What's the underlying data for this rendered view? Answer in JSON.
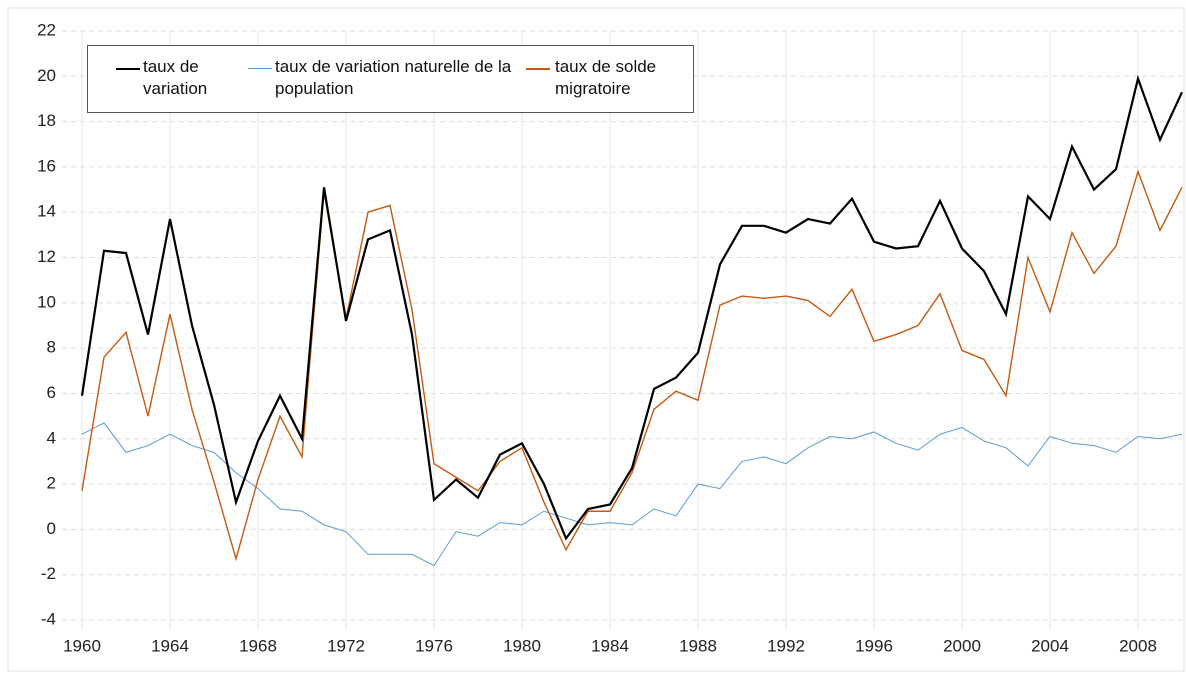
{
  "chart_data": {
    "type": "line",
    "x": [
      1960,
      1961,
      1962,
      1963,
      1964,
      1965,
      1966,
      1967,
      1968,
      1969,
      1970,
      1971,
      1972,
      1973,
      1974,
      1975,
      1976,
      1977,
      1978,
      1979,
      1980,
      1981,
      1982,
      1983,
      1984,
      1985,
      1986,
      1987,
      1988,
      1989,
      1990,
      1991,
      1992,
      1993,
      1994,
      1995,
      1996,
      1997,
      1998,
      1999,
      2000,
      2001,
      2002,
      2003,
      2004,
      2005,
      2006,
      2007,
      2008,
      2009,
      2010
    ],
    "series": [
      {
        "name": "taux de variation",
        "color": "#000000",
        "values": [
          5.9,
          12.3,
          12.2,
          8.6,
          13.7,
          9.0,
          5.5,
          1.2,
          3.9,
          5.9,
          4.0,
          15.1,
          9.2,
          12.8,
          13.2,
          8.6,
          1.3,
          2.2,
          1.4,
          3.3,
          3.8,
          2.0,
          -0.4,
          0.9,
          1.1,
          2.7,
          6.2,
          6.7,
          7.8,
          11.7,
          13.4,
          13.4,
          13.1,
          13.7,
          13.5,
          14.6,
          12.7,
          12.4,
          12.5,
          14.5,
          12.4,
          11.4,
          9.5,
          14.7,
          13.7,
          16.9,
          15.0,
          15.9,
          19.9,
          17.2,
          19.3
        ]
      },
      {
        "name": "taux de variation naturelle de la population",
        "color": "#5b9bd5",
        "values": [
          4.2,
          4.7,
          3.4,
          3.7,
          4.2,
          3.7,
          3.4,
          2.5,
          1.8,
          0.9,
          0.8,
          0.2,
          -0.1,
          -1.1,
          -1.1,
          -1.1,
          -1.6,
          -0.1,
          -0.3,
          0.3,
          0.2,
          0.8,
          0.5,
          0.2,
          0.3,
          0.2,
          0.9,
          0.6,
          2.0,
          1.8,
          3.0,
          3.2,
          2.9,
          3.6,
          4.1,
          4.0,
          4.3,
          3.8,
          3.5,
          4.2,
          4.5,
          3.9,
          3.6,
          2.8,
          4.1,
          3.8,
          3.7,
          3.4,
          4.1,
          4.0,
          4.2
        ]
      },
      {
        "name": "taux de solde migratoire",
        "color": "#c55a11",
        "values": [
          1.7,
          7.6,
          8.7,
          5.0,
          9.5,
          5.3,
          2.1,
          -1.3,
          2.2,
          5.0,
          3.2,
          14.9,
          9.3,
          14.0,
          14.3,
          9.7,
          2.9,
          2.3,
          1.7,
          3.0,
          3.6,
          1.2,
          -0.9,
          0.8,
          0.8,
          2.5,
          5.3,
          6.1,
          5.7,
          9.9,
          10.3,
          10.2,
          10.3,
          10.1,
          9.4,
          10.6,
          8.3,
          8.6,
          9.0,
          10.4,
          7.9,
          7.5,
          5.9,
          12.0,
          9.6,
          13.1,
          11.3,
          12.5,
          15.8,
          13.2,
          15.1
        ]
      }
    ],
    "xlim": [
      1960,
      2010
    ],
    "xticks": [
      1960,
      1964,
      1968,
      1972,
      1976,
      1980,
      1984,
      1988,
      1992,
      1996,
      2000,
      2004,
      2008
    ],
    "ylim": [
      -4,
      22
    ],
    "yticks": [
      -4,
      -2,
      0,
      2,
      4,
      6,
      8,
      10,
      12,
      14,
      16,
      18,
      20,
      22
    ],
    "grid": true
  }
}
